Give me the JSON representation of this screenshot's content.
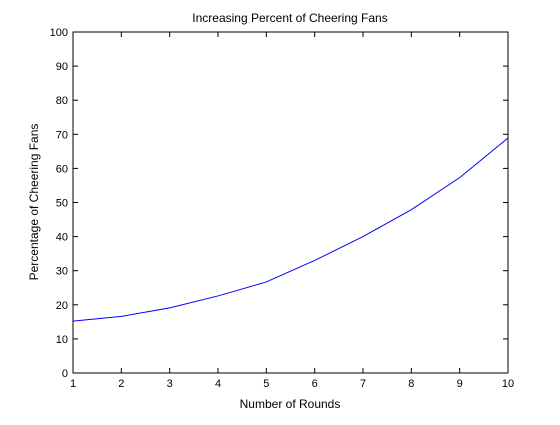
{
  "chart_data": {
    "type": "line",
    "title": "Increasing Percent of Cheering Fans",
    "xlabel": "Number of Rounds",
    "ylabel": "Percentage of Cheering Fans",
    "xlim": [
      1,
      10
    ],
    "ylim": [
      0,
      100
    ],
    "xticks": [
      1,
      2,
      3,
      4,
      5,
      6,
      7,
      8,
      9,
      10
    ],
    "yticks": [
      0,
      10,
      20,
      30,
      40,
      50,
      60,
      70,
      80,
      90,
      100
    ],
    "grid": false,
    "legend": "none",
    "series": [
      {
        "color": "#0000ff",
        "x": [
          1,
          2,
          3,
          4,
          5,
          6,
          7,
          8,
          9,
          10
        ],
        "y": [
          15.2,
          16.6,
          19.1,
          22.6,
          26.7,
          33.0,
          40.0,
          47.9,
          57.3,
          68.9
        ]
      }
    ]
  }
}
